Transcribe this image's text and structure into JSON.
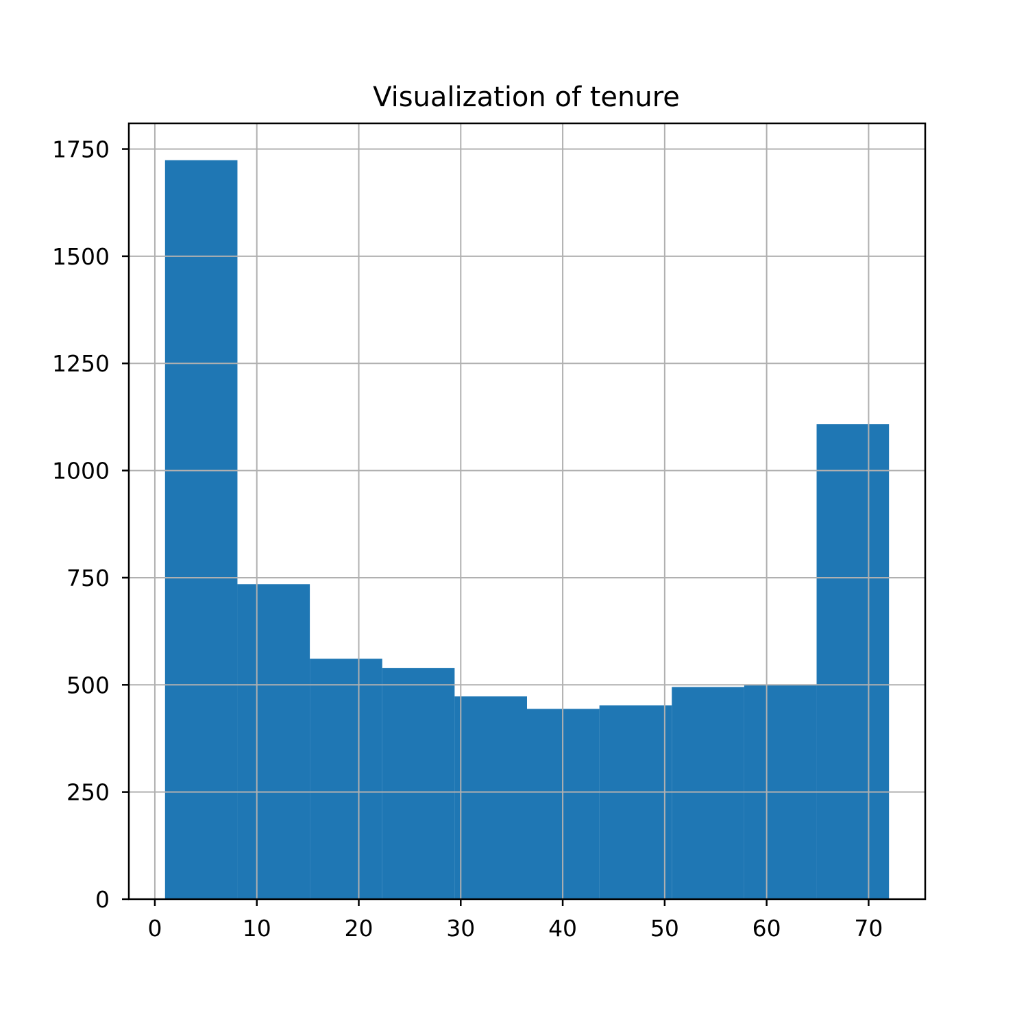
{
  "chart_data": {
    "type": "bar",
    "subtype": "histogram",
    "title": "Visualization of tenure",
    "xlabel": "",
    "ylabel": "",
    "bins": [
      {
        "start": 1.0,
        "end": 8.1,
        "value": 1724
      },
      {
        "start": 8.1,
        "end": 15.2,
        "value": 735
      },
      {
        "start": 15.2,
        "end": 22.3,
        "value": 561
      },
      {
        "start": 22.3,
        "end": 29.4,
        "value": 539
      },
      {
        "start": 29.4,
        "end": 36.5,
        "value": 473
      },
      {
        "start": 36.5,
        "end": 43.6,
        "value": 444
      },
      {
        "start": 43.6,
        "end": 50.7,
        "value": 452
      },
      {
        "start": 50.7,
        "end": 57.8,
        "value": 495
      },
      {
        "start": 57.8,
        "end": 64.9,
        "value": 499
      },
      {
        "start": 64.9,
        "end": 72.0,
        "value": 1108
      }
    ],
    "xlim": [
      -2.55,
      75.55
    ],
    "ylim": [
      0,
      1810
    ],
    "xticks": [
      0,
      10,
      20,
      30,
      40,
      50,
      60,
      70
    ],
    "xtick_labels": [
      "0",
      "10",
      "20",
      "30",
      "40",
      "50",
      "60",
      "70"
    ],
    "yticks": [
      0,
      250,
      500,
      750,
      1000,
      1250,
      1500,
      1750
    ],
    "ytick_labels": [
      "0",
      "250",
      "500",
      "750",
      "1000",
      "1250",
      "1500",
      "1750"
    ],
    "grid": true,
    "legend": "none",
    "colors": {
      "bar": "#1f77b4",
      "grid": "#b0b0b0",
      "axis": "#000000"
    }
  }
}
